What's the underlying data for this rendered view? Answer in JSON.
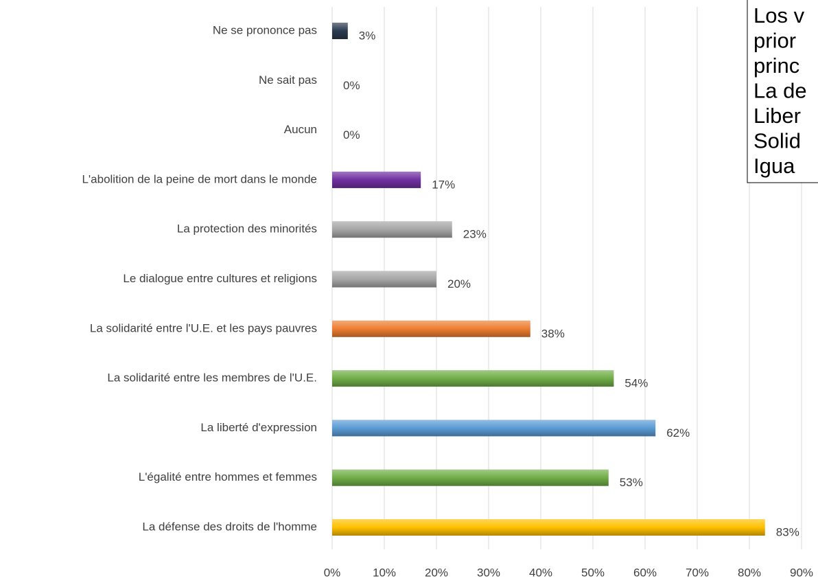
{
  "chart_data": {
    "type": "barh",
    "categories": [
      "Ne se prononce pas",
      "Ne sait pas",
      "Aucun",
      "L'abolition de la peine de mort dans le monde",
      "La protection des minorités",
      "Le dialogue entre cultures et religions",
      "La solidarité entre l'U.E. et les pays pauvres",
      "La solidarité entre les membres de l'U.E.",
      "La liberté d'expression",
      "L'égalité entre hommes et femmes",
      "La défense des droits de l'homme"
    ],
    "values": [
      3,
      0,
      0,
      17,
      23,
      20,
      38,
      54,
      62,
      53,
      83
    ],
    "value_labels": [
      "3%",
      "0%",
      "0%",
      "17%",
      "23%",
      "20%",
      "38%",
      "54%",
      "62%",
      "53%",
      "83%"
    ],
    "colors": [
      "#2b3a4f",
      "#2b3a4f",
      "#2b3a4f",
      "#7030a0",
      "#a6a6a6",
      "#a6a6a6",
      "#ed7d31",
      "#70ad47",
      "#5b9bd5",
      "#70ad47",
      "#ffc000"
    ],
    "xlim": [
      0,
      90
    ],
    "xticks": [
      {
        "value": 0,
        "label": "0%"
      },
      {
        "value": 10,
        "label": "10%"
      },
      {
        "value": 20,
        "label": "20%"
      },
      {
        "value": 30,
        "label": "30%"
      },
      {
        "value": 40,
        "label": "40%"
      },
      {
        "value": 50,
        "label": "50%"
      },
      {
        "value": 60,
        "label": "60%"
      },
      {
        "value": 70,
        "label": "70%"
      },
      {
        "value": 80,
        "label": "80%"
      },
      {
        "value": 90,
        "label": "90%"
      }
    ],
    "grid": true
  },
  "textbox": {
    "lines": [
      "Los v",
      "prior",
      "princ",
      "La de",
      "Liber",
      "Solid",
      "Igua"
    ]
  }
}
